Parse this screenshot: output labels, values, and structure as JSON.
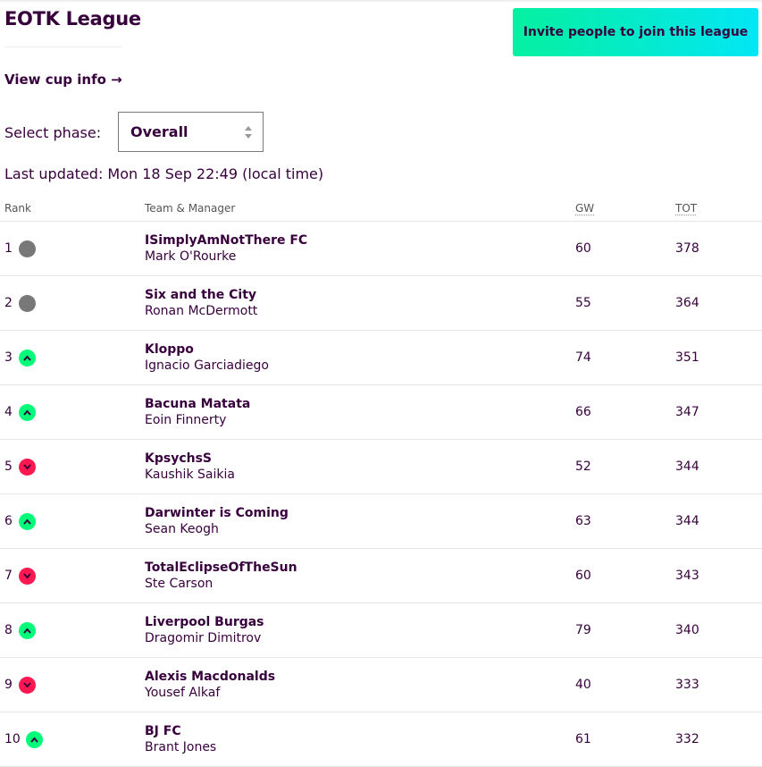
{
  "league": {
    "title": "EOTK League"
  },
  "actions": {
    "invite_label": "Invite people to join this league",
    "cup_link": "View cup info →"
  },
  "phase": {
    "label": "Select phase:",
    "selected": "Overall"
  },
  "last_updated": "Last updated: Mon 18 Sep 22:49 (local time)",
  "table": {
    "headers": {
      "rank": "Rank",
      "team": "Team & Manager",
      "gw": "GW",
      "tot": "TOT"
    },
    "rows": [
      {
        "rank": "1",
        "movement": "same",
        "team": "ISimplyAmNotThere FC",
        "manager": "Mark O'Rourke",
        "gw": "60",
        "tot": "378"
      },
      {
        "rank": "2",
        "movement": "same",
        "team": "Six and the City",
        "manager": "Ronan McDermott",
        "gw": "55",
        "tot": "364"
      },
      {
        "rank": "3",
        "movement": "up",
        "team": "Kloppo",
        "manager": "Ignacio Garciadiego",
        "gw": "74",
        "tot": "351"
      },
      {
        "rank": "4",
        "movement": "up",
        "team": "Bacuna Matata",
        "manager": "Eoin Finnerty",
        "gw": "66",
        "tot": "347"
      },
      {
        "rank": "5",
        "movement": "down",
        "team": "KpsychsS",
        "manager": "Kaushik Saikia",
        "gw": "52",
        "tot": "344"
      },
      {
        "rank": "6",
        "movement": "up",
        "team": "Darwinter is Coming",
        "manager": "Sean Keogh",
        "gw": "63",
        "tot": "344"
      },
      {
        "rank": "7",
        "movement": "down",
        "team": "TotalEclipseOfTheSun",
        "manager": "Ste Carson",
        "gw": "60",
        "tot": "343"
      },
      {
        "rank": "8",
        "movement": "up",
        "team": "Liverpool Burgas",
        "manager": "Dragomir Dimitrov",
        "gw": "79",
        "tot": "340"
      },
      {
        "rank": "9",
        "movement": "down",
        "team": "Alexis Macdonalds",
        "manager": "Yousef Alkaf",
        "gw": "40",
        "tot": "333"
      },
      {
        "rank": "10",
        "movement": "up",
        "team": "BJ FC",
        "manager": "Brant Jones",
        "gw": "61",
        "tot": "332"
      }
    ]
  },
  "colors": {
    "text": "#37003c",
    "up": "#01fc7a",
    "down": "#ff1751",
    "same": "#787878",
    "accent_start": "#05f0a0",
    "accent_end": "#03e6f5"
  },
  "icons": {
    "up": "chevron-up-icon",
    "down": "chevron-down-icon",
    "same": "no-change-icon"
  }
}
